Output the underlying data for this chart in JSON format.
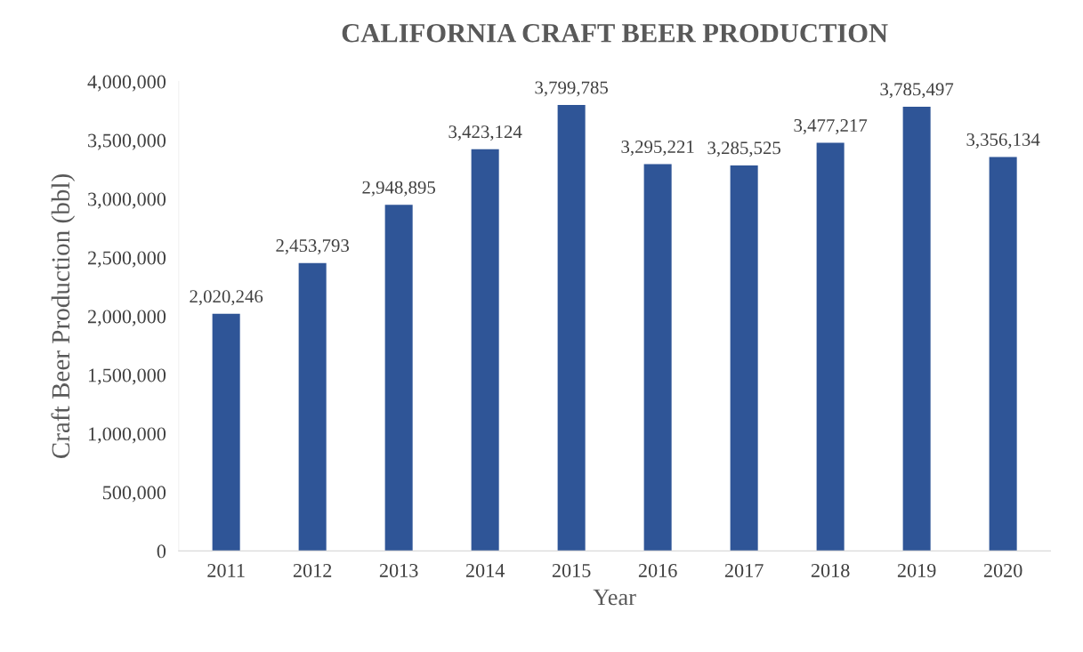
{
  "chart_data": {
    "type": "bar",
    "title": "CALIFORNIA CRAFT BEER PRODUCTION",
    "xlabel": "Year",
    "ylabel": "Craft Beer Production (bbl)",
    "categories": [
      "2011",
      "2012",
      "2013",
      "2014",
      "2015",
      "2016",
      "2017",
      "2018",
      "2019",
      "2020"
    ],
    "values": [
      2020246,
      2453793,
      2948895,
      3423124,
      3799785,
      3295221,
      3285525,
      3477217,
      3785497,
      3356134
    ],
    "value_labels": [
      "2,020,246",
      "2,453,793",
      "2,948,895",
      "3,423,124",
      "3,799,785",
      "3,295,221",
      "3,285,525",
      "3,477,217",
      "3,785,497",
      "3,356,134"
    ],
    "color": "#2f5597",
    "ylim": [
      0,
      4000000
    ],
    "yticks": [
      0,
      {
        "value": 500000,
        "label": "500,000"
      },
      {
        "value": 1000000,
        "label": "1,000,000"
      },
      {
        "value": 1500000,
        "label": "1,500,000"
      },
      {
        "value": 2000000,
        "label": "2,000,000"
      },
      {
        "value": 2500000,
        "label": "2,500,000"
      },
      {
        "value": 3000000,
        "label": "3,000,000"
      },
      {
        "value": 3500000,
        "label": "3,500,000"
      },
      {
        "value": 4000000,
        "label": "4,000,000"
      }
    ],
    "grid": false,
    "legend": false
  }
}
